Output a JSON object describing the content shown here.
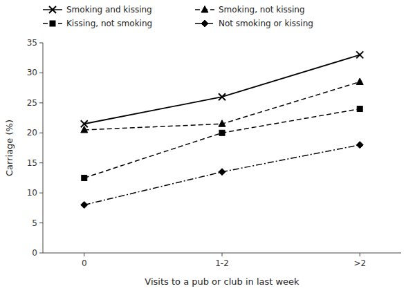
{
  "chart_data": {
    "type": "line",
    "xlabel": "Visits to a pub or club in last week",
    "ylabel": "Carriage (%)",
    "categories": [
      "0",
      "1-2",
      ">2"
    ],
    "series": [
      {
        "name": "Smoking and kissing",
        "color": "#000000",
        "marker": "x",
        "line_style": "solid",
        "values": [
          21.5,
          26.0,
          33.0
        ]
      },
      {
        "name": "Smoking, not kissing",
        "color": "#000000",
        "marker": "triangle",
        "line_style": "dashed",
        "values": [
          20.5,
          21.5,
          28.5
        ]
      },
      {
        "name": "Kissing, not smoking",
        "color": "#000000",
        "marker": "square",
        "line_style": "dashed",
        "values": [
          12.5,
          20.0,
          24.0
        ]
      },
      {
        "name": "Not smoking or kissing",
        "color": "#000000",
        "marker": "diamond",
        "line_style": "dashdot",
        "values": [
          8.0,
          13.5,
          18.0
        ]
      }
    ],
    "ylim": [
      0,
      35
    ],
    "yticks": [
      0,
      5,
      10,
      15,
      20,
      25,
      30,
      35
    ],
    "grid": false,
    "legend": "upper left"
  }
}
